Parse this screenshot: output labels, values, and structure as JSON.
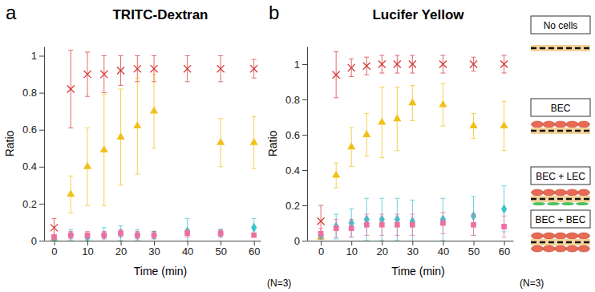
{
  "chart_data": [
    {
      "type": "scatter",
      "title": "TRITC-Dextran",
      "annotations": [
        "a",
        "(N=3)"
      ],
      "x_label": "Time (min)",
      "y_label": "Ratio",
      "x": [
        0,
        5,
        10,
        15,
        20,
        25,
        30,
        40,
        50,
        60
      ],
      "xlim": [
        -3,
        62
      ],
      "xticks": [
        0,
        10,
        20,
        30,
        40,
        50,
        60
      ],
      "ylim": [
        0,
        1.05
      ],
      "yticks": [
        0,
        0.2,
        0.4,
        0.6,
        0.8,
        1
      ],
      "legend": false,
      "series": [
        {
          "name": "No cells",
          "color": "#d83a3a",
          "marker": "x",
          "values": [
            0.07,
            0.82,
            0.9,
            0.9,
            0.92,
            0.93,
            0.93,
            0.93,
            0.93,
            0.93
          ],
          "errors": [
            0.05,
            0.21,
            0.12,
            0.1,
            0.08,
            0.07,
            0.07,
            0.07,
            0.07,
            0.05
          ]
        },
        {
          "name": "BEC",
          "color": "#f2c018",
          "marker": "triangle",
          "values": [
            0.01,
            0.25,
            0.4,
            0.49,
            0.56,
            0.62,
            0.7,
            null,
            0.53,
            0.53
          ],
          "errors": [
            0.01,
            0.1,
            0.21,
            0.3,
            0.26,
            0.26,
            0.2,
            null,
            0.13,
            0.14
          ]
        },
        {
          "name": "BEC + LEC",
          "color": "#3cc4cc",
          "marker": "diamond",
          "values": [
            0.01,
            0.03,
            0.02,
            0.03,
            0.04,
            0.03,
            0.03,
            0.05,
            0.04,
            0.07
          ],
          "errors": [
            0.01,
            0.03,
            0.02,
            0.04,
            0.04,
            0.03,
            0.02,
            0.07,
            0.02,
            0.05
          ]
        },
        {
          "name": "BEC + BEC",
          "color": "#ee6f9f",
          "marker": "square",
          "values": [
            0.02,
            0.03,
            0.03,
            0.03,
            0.04,
            0.03,
            0.03,
            0.04,
            0.04,
            0.03
          ],
          "errors": [
            0.01,
            0.02,
            0.02,
            0.02,
            0.02,
            0.02,
            0.02,
            0.02,
            0.02,
            0.01
          ]
        }
      ]
    },
    {
      "type": "scatter",
      "title": "Lucifer Yellow",
      "annotations": [
        "b",
        "(N=3)"
      ],
      "x_label": "Time (min)",
      "y_label": "Ratio",
      "x": [
        0,
        5,
        10,
        15,
        20,
        25,
        30,
        40,
        50,
        60
      ],
      "xlim": [
        -4.5,
        63
      ],
      "xticks": [
        0,
        10,
        20,
        30,
        40,
        50,
        60
      ],
      "ylim": [
        0,
        1.1
      ],
      "yticks": [
        0,
        0.2,
        0.4,
        0.6,
        0.8,
        1
      ],
      "legend": "right",
      "series": [
        {
          "name": "No cells",
          "color": "#d83a3a",
          "marker": "x",
          "values": [
            0.11,
            0.94,
            0.98,
            0.99,
            1.0,
            1.0,
            1.0,
            1.0,
            1.0,
            1.0
          ],
          "errors": [
            0.09,
            0.13,
            0.05,
            0.05,
            0.05,
            0.05,
            0.05,
            0.05,
            0.04,
            0.05
          ]
        },
        {
          "name": "BEC",
          "color": "#f2c018",
          "marker": "triangle",
          "values": [
            0.02,
            0.37,
            0.53,
            0.6,
            0.67,
            0.69,
            0.78,
            0.77,
            0.65,
            0.65
          ],
          "errors": [
            0.01,
            0.07,
            0.11,
            0.12,
            0.2,
            0.18,
            0.1,
            0.12,
            0.07,
            0.14
          ]
        },
        {
          "name": "BEC + LEC",
          "color": "#3cc4cc",
          "marker": "diamond",
          "values": [
            0.03,
            0.08,
            0.1,
            0.12,
            0.12,
            0.12,
            0.11,
            0.12,
            0.14,
            0.18
          ],
          "errors": [
            0.02,
            0.07,
            0.08,
            0.12,
            0.12,
            0.12,
            0.12,
            0.12,
            0.11,
            0.13
          ]
        },
        {
          "name": "BEC + BEC",
          "color": "#ee6f9f",
          "marker": "square",
          "values": [
            0.04,
            0.07,
            0.07,
            0.09,
            0.09,
            0.09,
            0.09,
            0.1,
            0.09,
            0.08
          ],
          "errors": [
            0.03,
            0.05,
            0.05,
            0.06,
            0.06,
            0.06,
            0.06,
            0.06,
            0.06,
            0.06
          ]
        }
      ]
    }
  ]
}
